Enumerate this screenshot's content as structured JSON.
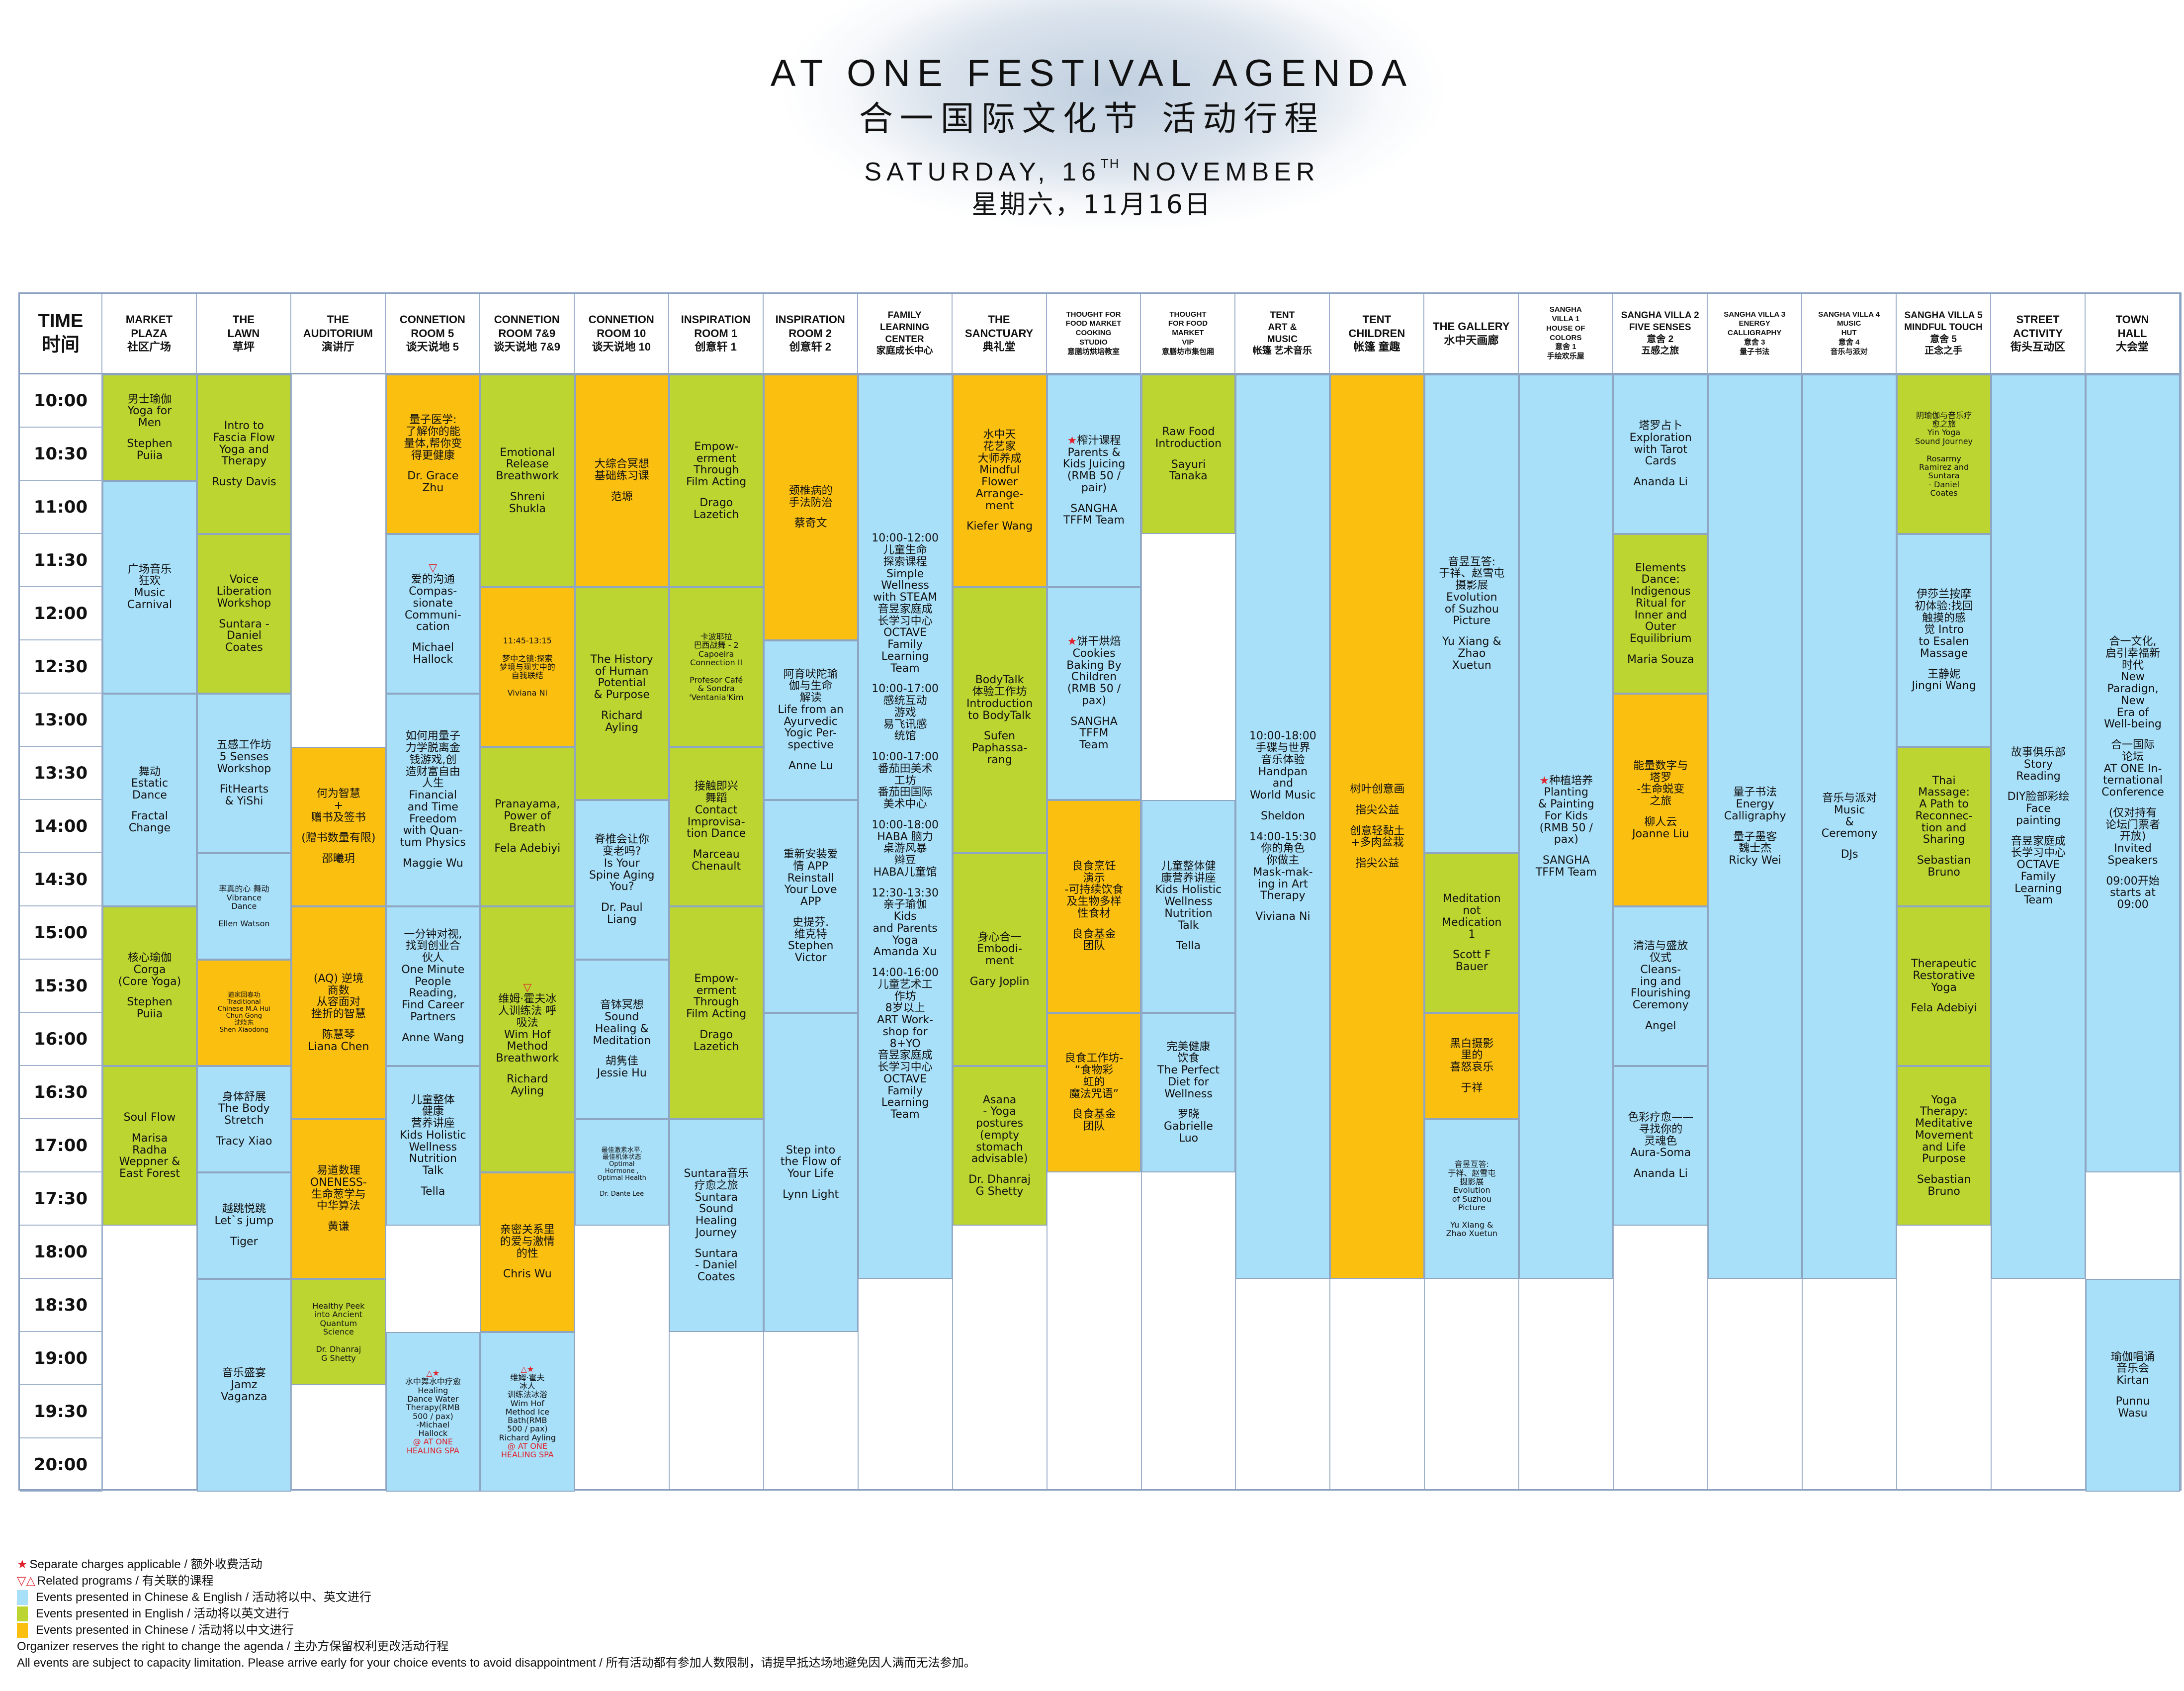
{
  "header": {
    "title_en": "AT ONE FESTIVAL AGENDA",
    "title_zh": "合一国际文化节 活动行程",
    "date_en_prefix": "SATURDAY, 16",
    "date_en_sup": "TH",
    "date_en_suffix": " NOVEMBER",
    "date_zh": "星期六，11月16日"
  },
  "colors": {
    "chinese_english": "#a9e0f9",
    "english": "#bcd531",
    "chinese": "#fbbf10",
    "charge_mark": "#e0202a",
    "grid_line": "#9fb2cc"
  },
  "time_header": "TIME\n时间",
  "times": [
    "10:00",
    "10:30",
    "11:00",
    "11:30",
    "12:00",
    "12:30",
    "13:00",
    "13:30",
    "14:00",
    "14:30",
    "15:00",
    "15:30",
    "16:00",
    "16:30",
    "17:00",
    "17:30",
    "18:00",
    "18:30",
    "19:00",
    "19:30",
    "20:00"
  ],
  "venues": [
    "MARKET\nPLAZA\n社区广场",
    "THE\nLAWN\n草坪",
    "THE\nAUDITORIUM\n演讲厅",
    "CONNETION\nROOM 5\n谈天说地 5",
    "CONNETION\nROOM 7&9\n谈天说地 7&9",
    "CONNETION\nROOM 10\n谈天说地 10",
    "INSPIRATION\nROOM 1\n创意轩 1",
    "INSPIRATION\nROOM 2\n创意轩 2",
    "FAMILY\nLEARNING\nCENTER\n家庭成长中心",
    "THE\nSANCTUARY\n典礼堂",
    "THOUGHT FOR\nFOOD MARKET\nCOOKING\nSTUDIO\n意膳坊烘培教室",
    "THOUGHT\nFOR FOOD\nMARKET\nVIP\n意膳坊市集包厢",
    "TENT\nART &\nMUSIC\n帐篷 艺术音乐",
    "TENT\nCHILDREN\n帐篷 童趣",
    "THE GALLERY\n水中天画廊",
    "SANGHA\nVILLA 1\nHOUSE OF\nCOLORS\n意舍 1\n手绘欢乐屋",
    "SANGHA VILLA 2\nFIVE SENSES\n意舍 2\n五感之旅",
    "SANGHA VILLA 3\nENERGY\nCALLIGRAPHY\n意舍 3\n量子书法",
    "SANGHA VILLA 4\nMUSIC\nHUT\n意舍 4\n音乐与派对",
    "SANGHA VILLA 5\nMINDFUL TOUCH\n意舍 5\n正念之手",
    "STREET\nACTIVITY\n街头互动区",
    "TOWN\nHALL\n大会堂"
  ],
  "events": [
    {
      "col": 0,
      "start": 0,
      "end": 2,
      "lang": "english",
      "lines": [
        "男士瑜伽\nYoga for\nMen",
        "Stephen\nPuiia"
      ]
    },
    {
      "col": 0,
      "start": 2,
      "end": 6,
      "lang": "chinese_english",
      "lines": [
        "广场音乐\n狂欢\nMusic\nCarnival"
      ]
    },
    {
      "col": 0,
      "start": 6,
      "end": 10,
      "lang": "chinese_english",
      "lines": [
        "舞动\nEstatic\nDance",
        "Fractal\nChange"
      ]
    },
    {
      "col": 0,
      "start": 10,
      "end": 13,
      "lang": "english",
      "lines": [
        "核心瑜伽\nCorga\n(Core Yoga)",
        "Stephen\nPuiia"
      ]
    },
    {
      "col": 0,
      "start": 13,
      "end": 16,
      "lang": "english",
      "lines": [
        "Soul Flow",
        "Marisa\nRadha\nWeppner &\nEast Forest"
      ]
    },
    {
      "col": 1,
      "start": 0,
      "end": 3,
      "lang": "english",
      "lines": [
        "Intro to\nFascia Flow\nYoga and\nTherapy",
        "Rusty Davis"
      ]
    },
    {
      "col": 1,
      "start": 3,
      "end": 6,
      "lang": "english",
      "lines": [
        "Voice\nLiberation\nWorkshop",
        "Suntara -\nDaniel\nCoates"
      ]
    },
    {
      "col": 1,
      "start": 6,
      "end": 9,
      "lang": "chinese_english",
      "lines": [
        "五感工作坊\n5 Senses\nWorkshop",
        "FitHearts\n& YiShi"
      ]
    },
    {
      "col": 1,
      "start": 9,
      "end": 11,
      "lang": "chinese_english",
      "size": "small",
      "lines": [
        "率真的心 舞动\nVibrance\nDance",
        "Ellen Watson"
      ]
    },
    {
      "col": 1,
      "start": 11,
      "end": 13,
      "lang": "chinese",
      "size": "xs",
      "lines": [
        "道家回春功\nTraditional\nChinese M.A Hui\nChun Gong\n沈晓东\nShen Xiaodong"
      ]
    },
    {
      "col": 1,
      "start": 13,
      "end": 15,
      "lang": "chinese_english",
      "lines": [
        "身体舒展\nThe Body\nStretch",
        "Tracy Xiao"
      ]
    },
    {
      "col": 1,
      "start": 15,
      "end": 17,
      "lang": "chinese_english",
      "lines": [
        "越跳悦跳\nLet`s jump",
        "Tiger"
      ]
    },
    {
      "col": 1,
      "start": 17,
      "end": 21,
      "lang": "chinese_english",
      "lines": [
        "音乐盛宴\nJamz\nVaganza"
      ]
    },
    {
      "col": 2,
      "start": 7,
      "end": 10,
      "lang": "chinese",
      "lines": [
        "何为智慧\n+\n赠书及签书",
        "(赠书数量有限)",
        "邵曦玥"
      ]
    },
    {
      "col": 2,
      "start": 10,
      "end": 14,
      "lang": "chinese",
      "lines": [
        "(AQ) 逆境\n商数\n从容面对\n挫折的智慧",
        "陈慧琴\nLiana Chen"
      ]
    },
    {
      "col": 2,
      "start": 14,
      "end": 17,
      "lang": "chinese",
      "lines": [
        "易道数理\nONENESS-\n生命葱学与\n中华算法",
        "黄谦"
      ]
    },
    {
      "col": 2,
      "start": 17,
      "end": 19,
      "lang": "english",
      "size": "small",
      "lines": [
        "Healthy Peek\ninto Ancient\nQuantum\nScience",
        "Dr. Dhanraj\nG Shetty"
      ]
    },
    {
      "col": 3,
      "start": 0,
      "end": 3,
      "lang": "chinese",
      "lines": [
        "量子医学:\n了解你的能\n量体,帮你变\n得更健康",
        "Dr. Grace\nZhu"
      ]
    },
    {
      "col": 3,
      "start": 3,
      "end": 6,
      "lang": "chinese_english",
      "related": "down",
      "lines": [
        "爱的沟通\nCompas-\nsionate\nCommuni-\ncation",
        "Michael\nHallock"
      ]
    },
    {
      "col": 3,
      "start": 6,
      "end": 10,
      "lang": "chinese_english",
      "lines": [
        "如何用量子\n力学脱离金\n钱游戏,创\n造财富自由\n人生\nFinancial\nand Time\nFreedom\nwith Quan-\ntum Physics",
        "Maggie Wu"
      ]
    },
    {
      "col": 3,
      "start": 10,
      "end": 13,
      "lang": "chinese_english",
      "lines": [
        "一分钟对视,\n找到创业合\n伙人\nOne Minute\nPeople\nReading,\nFind Career\nPartners",
        "Anne Wang"
      ]
    },
    {
      "col": 3,
      "start": 13,
      "end": 16,
      "lang": "chinese_english",
      "lines": [
        "儿童整体\n健康\n营养讲座\nKids Holistic\nWellness\nNutrition\nTalk",
        "Tella"
      ]
    },
    {
      "col": 3,
      "start": 18,
      "end": 21,
      "lang": "chinese_english",
      "size": "small",
      "related": "up",
      "charge": true,
      "lines": [
        "水中舞水中疗愈\nHealing\nDance Water\nTherapy(RMB\n500 / pax)\n-Michael\nHallock"
      ],
      "venue_note": "@ AT ONE\nHEALING SPA"
    },
    {
      "col": 4,
      "start": 0,
      "end": 4,
      "lang": "english",
      "lines": [
        "Emotional\nRelease\nBreathwork",
        "Shreni\nShukla"
      ]
    },
    {
      "col": 4,
      "start": 4,
      "end": 7,
      "lang": "chinese",
      "size": "small",
      "lines": [
        "11:45-13:15",
        "梦中之镜:探索\n梦境与现实中的\n自我联结",
        "Viviana Ni"
      ]
    },
    {
      "col": 4,
      "start": 7,
      "end": 10,
      "lang": "english",
      "lines": [
        "Pranayama,\nPower of\nBreath",
        "Fela Adebiyi"
      ]
    },
    {
      "col": 4,
      "start": 10,
      "end": 15,
      "lang": "english",
      "related": "down",
      "lines": [
        "维姆·霍夫冰\n人训练法 呼\n吸法\nWim Hof\nMethod\nBreathwork",
        "Richard\nAyling"
      ]
    },
    {
      "col": 4,
      "start": 15,
      "end": 18,
      "lang": "chinese",
      "lines": [
        "亲密关系里\n的爱与激情\n的性",
        "Chris Wu"
      ]
    },
    {
      "col": 4,
      "start": 18,
      "end": 21,
      "lang": "chinese_english",
      "size": "small",
      "related": "up",
      "charge": true,
      "lines": [
        "维姆·霍夫\n冰人\n训练法冰浴\nWim Hof\nMethod Ice\nBath(RMB\n500 / pax)\nRichard Ayling"
      ],
      "venue_note": "@ AT ONE\nHEALING SPA"
    },
    {
      "col": 5,
      "start": 0,
      "end": 4,
      "lang": "chinese",
      "lines": [
        "大综合冥想\n基础练习课",
        "范塬"
      ]
    },
    {
      "col": 5,
      "start": 4,
      "end": 8,
      "lang": "english",
      "lines": [
        "The History\nof Human\nPotential\n& Purpose",
        "Richard\nAyling"
      ]
    },
    {
      "col": 5,
      "start": 8,
      "end": 11,
      "lang": "chinese_english",
      "lines": [
        "脊椎会让你\n变老吗?\nIs Your\nSpine Aging\nYou?",
        "Dr. Paul\nLiang"
      ]
    },
    {
      "col": 5,
      "start": 11,
      "end": 14,
      "lang": "chinese_english",
      "lines": [
        "音钵冥想\nSound\nHealing &\nMeditation",
        "胡隽佳\nJessie Hu"
      ]
    },
    {
      "col": 5,
      "start": 14,
      "end": 16,
      "lang": "chinese_english",
      "size": "xs",
      "lines": [
        "最佳激素水平,\n最佳机体状态\nOptimal\nHormone ,\nOptimal Health",
        "Dr. Dante Lee"
      ]
    },
    {
      "col": 6,
      "start": 0,
      "end": 4,
      "lang": "english",
      "lines": [
        "Empow-\nerment\nThrough\nFilm Acting",
        "Drago\nLazetich"
      ]
    },
    {
      "col": 6,
      "start": 4,
      "end": 7,
      "lang": "english",
      "size": "small",
      "lines": [
        "卡波耶拉\n巴西战舞 - 2\nCapoeira\nConnection II",
        "Profesor Café\n& Sondra\n'Ventania'Kim"
      ]
    },
    {
      "col": 6,
      "start": 7,
      "end": 10,
      "lang": "english",
      "lines": [
        "接触即兴\n舞蹈\nContact\nImprovisa-\ntion Dance",
        "Marceau\nChenault"
      ]
    },
    {
      "col": 6,
      "start": 10,
      "end": 14,
      "lang": "english",
      "lines": [
        "Empow-\nerment\nThrough\nFilm Acting",
        "Drago\nLazetich"
      ]
    },
    {
      "col": 6,
      "start": 14,
      "end": 18,
      "lang": "chinese_english",
      "lines": [
        "Suntara音乐\n疗愈之旅\nSuntara\nSound\nHealing\nJourney",
        "Suntara\n- Daniel\nCoates"
      ]
    },
    {
      "col": 7,
      "start": 0,
      "end": 5,
      "lang": "chinese",
      "lines": [
        "颈椎病的\n手法防治",
        "蔡奇文"
      ]
    },
    {
      "col": 7,
      "start": 5,
      "end": 8,
      "lang": "chinese_english",
      "lines": [
        "阿育吠陀瑜\n伽与生命\n解读\nLife from an\nAyurvedic\nYogic Per-\nspective",
        "Anne Lu"
      ]
    },
    {
      "col": 7,
      "start": 8,
      "end": 12,
      "lang": "chinese_english",
      "lines": [
        "重新安装爱\n情 APP\nReinstall\nYour Love\nAPP",
        "史提芬.\n维克特\nStephen\nVictor"
      ]
    },
    {
      "col": 7,
      "start": 12,
      "end": 18,
      "lang": "chinese_english",
      "lines": [
        "Step into\nthe Flow of\nYour Life",
        "Lynn Light"
      ]
    },
    {
      "col": 8,
      "start": 0,
      "end": 17,
      "lang": "chinese_english",
      "lines": [
        "10:00-12:00\n儿童生命\n探索课程\nSimple\nWellness\nwith STEAM\n音昱家庭成\n长学习中心\nOCTAVE\nFamily\nLearning\nTeam",
        "10:00-17:00\n感统互动\n游戏\n易飞讯感\n统馆",
        "10:00-17:00\n番茄田美术\n工坊\n番茄田国际\n美术中心",
        "10:00-18:00\nHABA 脑力\n桌游风暴\n辫豆\nHABA儿童馆",
        "12:30-13:30\n亲子瑜伽\nKids\nand Parents\nYoga\nAmanda Xu",
        "14:00-16:00\n儿童艺术工\n作坊\n8岁以上\nART Work-\nshop for\n8+YO\n音昱家庭成\n长学习中心\nOCTAVE\nFamily\nLearning\nTeam"
      ]
    },
    {
      "col": 9,
      "start": 0,
      "end": 4,
      "lang": "chinese",
      "lines": [
        "水中天\n花艺家\n大师养成\nMindful\nFlower\nArrange-\nment",
        "Kiefer Wang"
      ]
    },
    {
      "col": 9,
      "start": 4,
      "end": 9,
      "lang": "english",
      "lines": [
        "BodyTalk\n体验工作坊\nIntroduction\nto BodyTalk",
        "Sufen\nPaphassa-\nrang"
      ]
    },
    {
      "col": 9,
      "start": 9,
      "end": 13,
      "lang": "english",
      "lines": [
        "身心合一\nEmbodi-\nment",
        "Gary Joplin"
      ]
    },
    {
      "col": 9,
      "start": 13,
      "end": 16,
      "lang": "english",
      "lines": [
        "Asana\n- Yoga\npostures\n(empty\nstomach\nadvisable)",
        "Dr. Dhanraj\nG Shetty"
      ]
    },
    {
      "col": 10,
      "start": 0,
      "end": 4,
      "lang": "chinese_english",
      "charge": true,
      "lines": [
        "榨汁课程\nParents &\nKids Juicing\n(RMB 50 /\npair)",
        "SANGHA\nTFFM Team"
      ]
    },
    {
      "col": 10,
      "start": 4,
      "end": 8,
      "lang": "chinese_english",
      "charge": true,
      "lines": [
        "饼干烘焙\nCookies\nBaking By\nChildren\n(RMB 50 /\npax)",
        "SANGHA\nTFFM\nTeam"
      ]
    },
    {
      "col": 10,
      "start": 8,
      "end": 12,
      "lang": "chinese",
      "lines": [
        "良食烹饪\n演示\n-可持续饮食\n及生物多样\n性食材",
        "良食基金\n团队"
      ]
    },
    {
      "col": 10,
      "start": 12,
      "end": 15,
      "lang": "chinese",
      "lines": [
        "良食工作坊-\n“食物彩\n虹的\n魔法咒语”",
        "良食基金\n团队"
      ]
    },
    {
      "col": 11,
      "start": 0,
      "end": 3,
      "lang": "english",
      "lines": [
        "Raw Food\nIntroduction",
        "Sayuri\nTanaka"
      ]
    },
    {
      "col": 11,
      "start": 8,
      "end": 12,
      "lang": "chinese_english",
      "lines": [
        "儿童整体健\n康营养讲座\nKids Holistic\nWellness\nNutrition\nTalk",
        "Tella"
      ]
    },
    {
      "col": 11,
      "start": 12,
      "end": 15,
      "lang": "chinese_english",
      "lines": [
        "完美健康\n饮食\nThe Perfect\nDiet for\nWellness",
        "罗晓\nGabrielle\nLuo"
      ]
    },
    {
      "col": 12,
      "start": 0,
      "end": 17,
      "lang": "chinese_english",
      "lines": [
        "10:00-18:00\n手碟与世界\n音乐体验\nHandpan\nand\nWorld Music",
        "Sheldon",
        "14:00-15:30\n你的角色\n你做主\nMask-mak-\ning in Art\nTherapy",
        "Viviana Ni"
      ]
    },
    {
      "col": 13,
      "start": 0,
      "end": 17,
      "lang": "chinese",
      "lines": [
        "树叶创意画",
        "指尖公益",
        "创意轻黏土\n+多肉盆栽",
        "指尖公益"
      ]
    },
    {
      "col": 14,
      "start": 0,
      "end": 9,
      "lang": "chinese_english",
      "lines": [
        "音昱互答:\n于祥、赵雪屯\n摄影展\nEvolution\nof Suzhou\nPicture",
        "Yu Xiang &\nZhao\nXuetun"
      ]
    },
    {
      "col": 14,
      "start": 9,
      "end": 12,
      "lang": "english",
      "lines": [
        "Meditation\nnot\nMedication\n1",
        "Scott F\nBauer"
      ]
    },
    {
      "col": 14,
      "start": 12,
      "end": 14,
      "lang": "chinese",
      "lines": [
        "黑白摄影\n里的\n喜怒哀乐",
        "于祥"
      ]
    },
    {
      "col": 14,
      "start": 14,
      "end": 17,
      "lang": "chinese_english",
      "size": "small",
      "lines": [
        "音昱互答:\n于祥、赵雪屯\n摄影展\nEvolution\nof Suzhou\nPicture",
        "Yu Xiang &\nZhao Xuetun"
      ]
    },
    {
      "col": 15,
      "start": 0,
      "end": 17,
      "lang": "chinese_english",
      "charge": true,
      "lines": [
        "种植培养\nPlanting\n& Painting\nFor Kids\n(RMB 50 /\npax)",
        "SANGHA\nTFFM Team"
      ]
    },
    {
      "col": 16,
      "start": 0,
      "end": 3,
      "lang": "chinese_english",
      "lines": [
        "塔罗占卜\nExploration\nwith Tarot\nCards",
        "Ananda Li"
      ]
    },
    {
      "col": 16,
      "start": 3,
      "end": 6,
      "lang": "english",
      "lines": [
        "Elements\nDance:\nIndigenous\nRitual for\nInner and\nOuter\nEquilibrium",
        "Maria Souza"
      ]
    },
    {
      "col": 16,
      "start": 6,
      "end": 10,
      "lang": "chinese",
      "lines": [
        "能量数字与\n塔罗\n-生命蜕变\n之旅",
        "柳人云\nJoanne Liu"
      ]
    },
    {
      "col": 16,
      "start": 10,
      "end": 13,
      "lang": "chinese_english",
      "lines": [
        "清洁与盛放\n仪式\nCleans-\ning and\nFlourishing\nCeremony",
        "Angel"
      ]
    },
    {
      "col": 16,
      "start": 13,
      "end": 16,
      "lang": "chinese_english",
      "lines": [
        "色彩疗愈——\n寻找你的\n灵魂色\nAura-Soma",
        "Ananda Li"
      ]
    },
    {
      "col": 17,
      "start": 0,
      "end": 17,
      "lang": "chinese_english",
      "lines": [
        "量子书法\nEnergy\nCalligraphy",
        "量子墨客\n魏士杰\nRicky Wei"
      ]
    },
    {
      "col": 18,
      "start": 0,
      "end": 17,
      "lang": "chinese_english",
      "lines": [
        "音乐与派对\nMusic\n&\nCeremony",
        "DJs"
      ]
    },
    {
      "col": 19,
      "start": 0,
      "end": 3,
      "lang": "english",
      "size": "small",
      "lines": [
        "阴瑜伽与音乐疗\n愈之旅\nYin Yoga\nSound Journey",
        "Rosarmy\nRamirez and\nSuntara\n- Daniel\nCoates"
      ]
    },
    {
      "col": 19,
      "start": 3,
      "end": 7,
      "lang": "chinese_english",
      "lines": [
        "伊莎兰按摩\n初体验:找回\n触摸的感\n觉 Intro\nto Esalen\nMassage",
        "王静妮\nJingni Wang"
      ]
    },
    {
      "col": 19,
      "start": 7,
      "end": 10,
      "lang": "english",
      "lines": [
        "Thai\nMassage:\nA Path to\nReconnec-\ntion and\nSharing",
        "Sebastian\nBruno"
      ]
    },
    {
      "col": 19,
      "start": 10,
      "end": 13,
      "lang": "english",
      "lines": [
        "Therapeutic\nRestorative\nYoga",
        "Fela Adebiyi"
      ]
    },
    {
      "col": 19,
      "start": 13,
      "end": 16,
      "lang": "english",
      "lines": [
        "Yoga\nTherapy:\nMeditative\nMovement\nand Life\nPurpose",
        "Sebastian\nBruno"
      ]
    },
    {
      "col": 20,
      "start": 0,
      "end": 17,
      "lang": "chinese_english",
      "lines": [
        "故事俱乐部\nStory\nReading",
        "DIY脸部彩绘\nFace\npainting",
        "音昱家庭成\n长学习中心\nOCTAVE\nFamily\nLearning\nTeam"
      ]
    },
    {
      "col": 21,
      "start": 0,
      "end": 15,
      "lang": "chinese_english",
      "lines": [
        "合一文化,\n启引幸福新\n时代\nNew\nParadign,\nNew\nEra of\nWell-being",
        "合一国际\n论坛\nAT ONE In-\nternational\nConference",
        "(仅对持有\n论坛门票者\n开放)\nInvited\nSpeakers",
        "09:00开始\nstarts at\n09:00"
      ]
    },
    {
      "col": 21,
      "start": 17,
      "end": 21,
      "lang": "chinese_english",
      "lines": [
        "瑜伽唱诵\n音乐会\nKirtan",
        "Punnu\nWasu"
      ]
    }
  ],
  "legend": {
    "charge": "Separate charges applicable  /  额外收费活动",
    "related": "Related programs  /  有关联的课程",
    "chinese_english": "Events presented in Chinese & English  /  活动将以中、英文进行",
    "english": "Events presented in English  /  活动将以英文进行",
    "chinese": "Events presented in Chinese  /  活动将以中文进行",
    "note1": "Organizer reserves the right to change the agenda  /  主办方保留权利更改活动行程",
    "note2": "All events are subject to capacity limitation.  Please arrive early for your choice events to avoid disappointment  /  所有活动都有参加人数限制，请提早抵达场地避免因人满而无法参加。",
    "charge_symbol": "★",
    "related_symbols": "▽△",
    "related_down": "▽",
    "related_up": "△"
  }
}
